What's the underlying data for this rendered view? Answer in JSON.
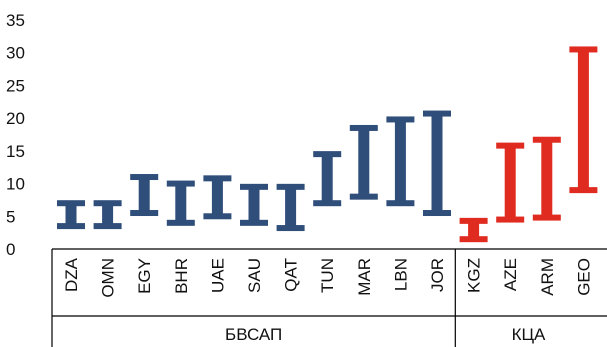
{
  "chart_data": {
    "type": "range-bar",
    "ylim": [
      0,
      35
    ],
    "yticks": [
      0,
      5,
      10,
      15,
      20,
      25,
      30,
      35
    ],
    "grid": false,
    "groups": [
      {
        "label": "БВСАП",
        "color": "#2f4e7a",
        "categories": [
          "DZA",
          "OMN",
          "EGY",
          "BHR",
          "UAE",
          "SAU",
          "QAT",
          "TUN",
          "MAR",
          "LBN",
          "JOR"
        ],
        "low": [
          3.5,
          3.5,
          5.5,
          4.0,
          5.0,
          4.0,
          3.2,
          7.0,
          8.0,
          7.0,
          5.5
        ],
        "high": [
          7.0,
          7.0,
          11.0,
          10.0,
          10.8,
          9.5,
          9.5,
          14.5,
          18.5,
          19.8,
          20.7
        ]
      },
      {
        "label": "КЦА",
        "color": "#e02b20",
        "categories": [
          "KGZ",
          "AZE",
          "ARM",
          "GEO"
        ],
        "low": [
          1.5,
          4.5,
          4.8,
          9.0
        ],
        "high": [
          4.3,
          15.8,
          16.7,
          30.5
        ]
      }
    ]
  }
}
